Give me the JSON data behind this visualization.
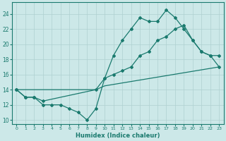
{
  "xlabel": "Humidex (Indice chaleur)",
  "xlim": [
    -0.5,
    23.5
  ],
  "ylim": [
    9.5,
    25.5
  ],
  "xticks": [
    0,
    1,
    2,
    3,
    4,
    5,
    6,
    7,
    8,
    9,
    10,
    11,
    12,
    13,
    14,
    15,
    16,
    17,
    18,
    19,
    20,
    21,
    22,
    23
  ],
  "yticks": [
    10,
    12,
    14,
    16,
    18,
    20,
    22,
    24
  ],
  "line_color": "#1a7a6e",
  "bg_color": "#cce8e8",
  "grid_color": "#afd0d0",
  "line1_x": [
    0,
    1,
    2,
    3,
    4,
    5,
    6,
    7,
    8,
    9,
    10,
    11,
    12,
    13,
    14,
    15,
    16,
    17,
    18,
    19,
    20,
    21,
    22,
    23
  ],
  "line1_y": [
    14,
    13,
    13,
    12,
    12,
    12,
    11.5,
    11,
    10,
    11.5,
    15.5,
    18.5,
    20.5,
    22,
    23.5,
    23,
    23,
    24.5,
    23.5,
    22,
    20.5,
    19,
    18.5,
    17
  ],
  "line2_x": [
    0,
    1,
    2,
    3,
    9,
    10,
    11,
    12,
    13,
    14,
    15,
    16,
    17,
    18,
    19,
    20,
    21,
    22,
    23
  ],
  "line2_y": [
    14,
    13,
    13,
    12.5,
    14,
    15.5,
    16,
    16.5,
    17,
    18.5,
    19,
    20.5,
    21,
    22,
    22.5,
    20.5,
    19,
    18.5,
    18.5
  ],
  "line3_x": [
    0,
    9,
    10,
    23
  ],
  "line3_y": [
    14,
    14,
    14.5,
    17
  ]
}
